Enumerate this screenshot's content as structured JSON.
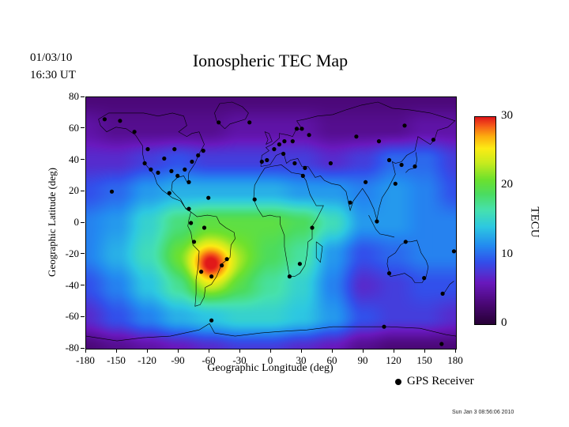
{
  "header": {
    "date": "01/03/10",
    "time": "16:30 UT",
    "title": "Ionospheric TEC Map"
  },
  "axes": {
    "x_label": "Geographic Longitude (deg)",
    "y_label": "Geographic Latitude (deg)",
    "x_ticks": [
      -180,
      -150,
      -120,
      -90,
      -60,
      -30,
      0,
      30,
      60,
      90,
      120,
      150,
      180
    ],
    "y_ticks": [
      80,
      60,
      40,
      20,
      0,
      -20,
      -40,
      -60,
      -80
    ]
  },
  "colorbar": {
    "label": "TECU",
    "ticks": [
      30,
      20,
      10,
      0
    ],
    "range": [
      0,
      30
    ]
  },
  "legend": {
    "label": "GPS Receiver"
  },
  "footer": {
    "timestamp": "Sun Jan 3 08:56:06 2010"
  },
  "chart_data": {
    "type": "heatmap",
    "title": "Ionospheric TEC Map",
    "xlabel": "Geographic Longitude (deg)",
    "ylabel": "Geographic Latitude (deg)",
    "units": "TECU",
    "xlim": [
      -180,
      180
    ],
    "ylim": [
      -80,
      80
    ],
    "colorbar_range": [
      0,
      30
    ],
    "grid_lons": [
      -180,
      -150,
      -120,
      -90,
      -60,
      -30,
      0,
      30,
      60,
      90,
      120,
      150,
      180
    ],
    "grid_lats": [
      80,
      60,
      40,
      20,
      0,
      -20,
      -40,
      -60,
      -80
    ],
    "tec_values": [
      [
        3,
        3,
        3,
        3,
        3,
        3,
        3,
        3,
        3,
        3,
        3,
        3,
        3
      ],
      [
        5,
        4,
        4,
        4,
        4,
        5,
        5,
        5,
        4,
        4,
        4,
        5,
        5
      ],
      [
        7,
        7,
        8,
        9,
        8,
        8,
        8,
        8,
        7,
        8,
        10,
        10,
        8
      ],
      [
        9,
        10,
        12,
        13,
        13,
        13,
        13,
        12,
        12,
        11,
        12,
        11,
        9
      ],
      [
        11,
        12,
        15,
        18,
        20,
        20,
        20,
        19,
        16,
        12,
        12,
        11,
        11
      ],
      [
        11,
        13,
        16,
        20,
        23,
        21,
        19,
        17,
        12,
        9,
        10,
        11,
        11
      ],
      [
        9,
        11,
        14,
        17,
        21,
        19,
        17,
        15,
        11,
        7,
        8,
        9,
        9
      ],
      [
        7,
        9,
        11,
        13,
        14,
        15,
        15,
        14,
        12,
        9,
        8,
        8,
        7
      ],
      [
        3,
        4,
        5,
        6,
        7,
        8,
        8,
        7,
        6,
        4,
        3,
        3,
        3
      ]
    ],
    "anomalies": [
      {
        "center": [
          -58,
          -27
        ],
        "sigma_lon": 16,
        "sigma_lat": 9,
        "amp": 8
      }
    ],
    "colormap_stops": [
      [
        0.0,
        [
          40,
          0,
          55
        ]
      ],
      [
        0.1,
        [
          75,
          8,
          120
        ]
      ],
      [
        0.2,
        [
          105,
          25,
          190
        ]
      ],
      [
        0.3,
        [
          50,
          80,
          235
        ]
      ],
      [
        0.38,
        [
          35,
          140,
          240
        ]
      ],
      [
        0.47,
        [
          45,
          200,
          225
        ]
      ],
      [
        0.55,
        [
          70,
          225,
          175
        ]
      ],
      [
        0.63,
        [
          75,
          220,
          95
        ]
      ],
      [
        0.7,
        [
          110,
          225,
          45
        ]
      ],
      [
        0.78,
        [
          200,
          235,
          30
        ]
      ],
      [
        0.85,
        [
          252,
          235,
          20
        ]
      ],
      [
        0.91,
        [
          252,
          170,
          15
        ]
      ],
      [
        0.96,
        [
          245,
          90,
          25
        ]
      ],
      [
        1.0,
        [
          225,
          25,
          25
        ]
      ]
    ],
    "gps_receivers": [
      [
        -162,
        66
      ],
      [
        -147,
        65
      ],
      [
        -133,
        58
      ],
      [
        -120,
        47
      ],
      [
        -123,
        38
      ],
      [
        -117,
        34
      ],
      [
        -110,
        32
      ],
      [
        -104,
        41
      ],
      [
        -97,
        33
      ],
      [
        -91,
        30
      ],
      [
        -84,
        34
      ],
      [
        -80,
        26
      ],
      [
        -77,
        39
      ],
      [
        -71,
        43
      ],
      [
        -66,
        46
      ],
      [
        -94,
        47
      ],
      [
        -99,
        19
      ],
      [
        -155,
        20
      ],
      [
        -61,
        16
      ],
      [
        -80,
        9
      ],
      [
        -78,
        0
      ],
      [
        -65,
        -3
      ],
      [
        -75,
        -12
      ],
      [
        -68,
        -31
      ],
      [
        -58,
        -34
      ],
      [
        -48,
        -27
      ],
      [
        -43,
        -23
      ],
      [
        -51,
        64
      ],
      [
        -21,
        64
      ],
      [
        -9,
        39
      ],
      [
        -4,
        40
      ],
      [
        3,
        47
      ],
      [
        8,
        50
      ],
      [
        13,
        52
      ],
      [
        21,
        52
      ],
      [
        25,
        60
      ],
      [
        30,
        60
      ],
      [
        12,
        44
      ],
      [
        23,
        38
      ],
      [
        33,
        35
      ],
      [
        -16,
        15
      ],
      [
        28,
        -26
      ],
      [
        18,
        -34
      ],
      [
        40,
        -3
      ],
      [
        31,
        30
      ],
      [
        37,
        56
      ],
      [
        58,
        38
      ],
      [
        77,
        13
      ],
      [
        92,
        26
      ],
      [
        103,
        1
      ],
      [
        115,
        40
      ],
      [
        127,
        37
      ],
      [
        140,
        36
      ],
      [
        121,
        25
      ],
      [
        83,
        55
      ],
      [
        105,
        52
      ],
      [
        130,
        62
      ],
      [
        158,
        53
      ],
      [
        115,
        -32
      ],
      [
        149,
        -35
      ],
      [
        167,
        -45
      ],
      [
        131,
        -12
      ],
      [
        178,
        -18
      ],
      [
        -58,
        -62
      ],
      [
        110,
        -66
      ],
      [
        166,
        -77
      ]
    ],
    "coastlines": [
      [
        [
          -168,
          66
        ],
        [
          -158,
          70
        ],
        [
          -140,
          70
        ],
        [
          -124,
          70
        ],
        [
          -110,
          68
        ],
        [
          -96,
          70
        ],
        [
          -85,
          68
        ],
        [
          -82,
          62
        ],
        [
          -90,
          58
        ],
        [
          -82,
          55
        ],
        [
          -77,
          57
        ],
        [
          -70,
          58
        ],
        [
          -65,
          50
        ],
        [
          -70,
          44
        ],
        [
          -74,
          38
        ],
        [
          -80,
          32
        ],
        [
          -81,
          25
        ],
        [
          -85,
          30
        ],
        [
          -91,
          29
        ],
        [
          -96,
          26
        ],
        [
          -97,
          21
        ],
        [
          -93,
          18
        ],
        [
          -88,
          15
        ],
        [
          -83,
          9
        ],
        [
          -78,
          7
        ],
        [
          -84,
          10
        ],
        [
          -88,
          14
        ],
        [
          -96,
          16
        ],
        [
          -106,
          21
        ],
        [
          -111,
          25
        ],
        [
          -114,
          31
        ],
        [
          -118,
          34
        ],
        [
          -123,
          38
        ],
        [
          -125,
          44
        ],
        [
          -125,
          49
        ],
        [
          -132,
          56
        ],
        [
          -141,
          60
        ],
        [
          -151,
          61
        ],
        [
          -160,
          58
        ],
        [
          -166,
          62
        ],
        [
          -168,
          66
        ]
      ],
      [
        [
          -78,
          7
        ],
        [
          -72,
          4
        ],
        [
          -62,
          5
        ],
        [
          -53,
          4
        ],
        [
          -50,
          0
        ],
        [
          -44,
          -3
        ],
        [
          -36,
          -6
        ],
        [
          -35,
          -10
        ],
        [
          -39,
          -14
        ],
        [
          -40,
          -22
        ],
        [
          -48,
          -26
        ],
        [
          -53,
          -34
        ],
        [
          -58,
          -39
        ],
        [
          -64,
          -41
        ],
        [
          -65,
          -47
        ],
        [
          -69,
          -52
        ],
        [
          -74,
          -53
        ],
        [
          -73,
          -45
        ],
        [
          -73,
          -36
        ],
        [
          -71,
          -28
        ],
        [
          -70,
          -18
        ],
        [
          -76,
          -14
        ],
        [
          -78,
          -6
        ],
        [
          -81,
          -2
        ],
        [
          -80,
          2
        ],
        [
          -78,
          7
        ]
      ],
      [
        [
          -6,
          35
        ],
        [
          -10,
          31
        ],
        [
          -16,
          24
        ],
        [
          -17,
          15
        ],
        [
          -13,
          9
        ],
        [
          -8,
          4
        ],
        [
          -1,
          5
        ],
        [
          5,
          4
        ],
        [
          9,
          4
        ],
        [
          9,
          -1
        ],
        [
          13,
          -8
        ],
        [
          13,
          -15
        ],
        [
          15,
          -23
        ],
        [
          18,
          -34
        ],
        [
          23,
          -34
        ],
        [
          28,
          -32
        ],
        [
          33,
          -27
        ],
        [
          35,
          -20
        ],
        [
          36,
          -12
        ],
        [
          40,
          -10
        ],
        [
          40,
          -2
        ],
        [
          44,
          2
        ],
        [
          51,
          11
        ],
        [
          44,
          11
        ],
        [
          38,
          18
        ],
        [
          34,
          27
        ],
        [
          30,
          31
        ],
        [
          20,
          32
        ],
        [
          10,
          37
        ],
        [
          0,
          36
        ],
        [
          -6,
          35
        ]
      ],
      [
        [
          -10,
          36
        ],
        [
          -9,
          43
        ],
        [
          -2,
          46
        ],
        [
          -5,
          48
        ],
        [
          1,
          50
        ],
        [
          8,
          54
        ],
        [
          8,
          57
        ],
        [
          16,
          56
        ],
        [
          21,
          55
        ],
        [
          24,
          59
        ],
        [
          30,
          60
        ],
        [
          25,
          65
        ],
        [
          33,
          66
        ],
        [
          45,
          68
        ],
        [
          60,
          69
        ],
        [
          73,
          72
        ],
        [
          88,
          75
        ],
        [
          104,
          77
        ],
        [
          118,
          73
        ],
        [
          135,
          72
        ],
        [
          155,
          70
        ],
        [
          170,
          67
        ],
        [
          179,
          65
        ],
        [
          172,
          61
        ],
        [
          162,
          59
        ],
        [
          159,
          53
        ],
        [
          155,
          50
        ],
        [
          143,
          55
        ],
        [
          140,
          46
        ],
        [
          132,
          43
        ],
        [
          127,
          39
        ],
        [
          121,
          38
        ],
        [
          118,
          39
        ],
        [
          121,
          31
        ],
        [
          114,
          22
        ],
        [
          108,
          16
        ],
        [
          105,
          9
        ],
        [
          103,
          2
        ],
        [
          100,
          9
        ],
        [
          95,
          16
        ],
        [
          89,
          22
        ],
        [
          80,
          14
        ],
        [
          77,
          8
        ],
        [
          73,
          20
        ],
        [
          67,
          24
        ],
        [
          59,
          25
        ],
        [
          52,
          27
        ],
        [
          48,
          30
        ],
        [
          43,
          29
        ],
        [
          36,
          36
        ],
        [
          30,
          36
        ],
        [
          26,
          41
        ],
        [
          19,
          40
        ],
        [
          15,
          38
        ],
        [
          12,
          45
        ],
        [
          5,
          43
        ],
        [
          3,
          41
        ],
        [
          -1,
          37
        ],
        [
          -10,
          36
        ]
      ],
      [
        [
          -45,
          60
        ],
        [
          -53,
          65
        ],
        [
          -55,
          70
        ],
        [
          -50,
          76
        ],
        [
          -38,
          77
        ],
        [
          -28,
          74
        ],
        [
          -22,
          70
        ],
        [
          -25,
          66
        ],
        [
          -40,
          63
        ],
        [
          -45,
          60
        ]
      ],
      [
        [
          114,
          -22
        ],
        [
          113,
          -26
        ],
        [
          116,
          -34
        ],
        [
          124,
          -33
        ],
        [
          130,
          -32
        ],
        [
          137,
          -35
        ],
        [
          140,
          -38
        ],
        [
          147,
          -38
        ],
        [
          151,
          -34
        ],
        [
          153,
          -28
        ],
        [
          151,
          -24
        ],
        [
          146,
          -19
        ],
        [
          142,
          -11
        ],
        [
          136,
          -12
        ],
        [
          131,
          -12
        ],
        [
          126,
          -14
        ],
        [
          121,
          -19
        ],
        [
          114,
          -22
        ]
      ],
      [
        [
          -180,
          -72
        ],
        [
          -150,
          -75
        ],
        [
          -125,
          -73
        ],
        [
          -98,
          -72
        ],
        [
          -70,
          -68
        ],
        [
          -60,
          -64
        ],
        [
          -55,
          -70
        ],
        [
          -35,
          -72
        ],
        [
          -10,
          -70
        ],
        [
          10,
          -69
        ],
        [
          35,
          -68
        ],
        [
          60,
          -66
        ],
        [
          90,
          -66
        ],
        [
          115,
          -66
        ],
        [
          145,
          -67
        ],
        [
          170,
          -71
        ],
        [
          180,
          -72
        ]
      ],
      [
        [
          44,
          -12
        ],
        [
          50,
          -15
        ],
        [
          48,
          -25
        ],
        [
          44,
          -22
        ],
        [
          44,
          -12
        ]
      ],
      [
        [
          141,
          45
        ],
        [
          142,
          40
        ],
        [
          140,
          35
        ],
        [
          134,
          34
        ],
        [
          131,
          32
        ]
      ],
      [
        [
          -5,
          50
        ],
        [
          -3,
          53
        ],
        [
          -6,
          58
        ],
        [
          -2,
          57
        ],
        [
          1,
          52
        ],
        [
          -5,
          50
        ]
      ],
      [
        [
          95,
          5
        ],
        [
          102,
          -4
        ],
        [
          106,
          -7
        ],
        [
          114,
          -8
        ],
        [
          120,
          -9
        ]
      ],
      [
        [
          167,
          -46
        ],
        [
          170,
          -43
        ],
        [
          174,
          -39
        ],
        [
          178,
          -37
        ]
      ]
    ]
  }
}
